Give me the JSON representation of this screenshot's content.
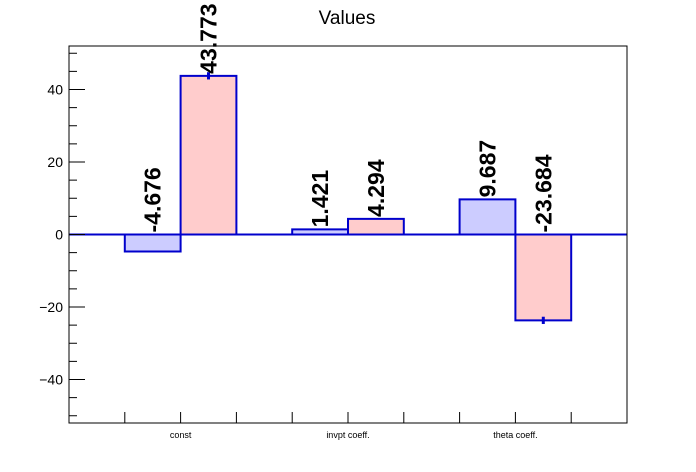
{
  "chart_data": {
    "type": "bar",
    "title": "Values",
    "xlabel": "",
    "ylabel": "",
    "categories": [
      "const",
      "invpt coeff.",
      "theta coeff."
    ],
    "series": [
      {
        "values": [
          -4.676,
          1.421,
          9.687
        ],
        "labels": [
          "-4.676",
          "1.421",
          "9.687"
        ],
        "fill": "#ccccff",
        "errors": [
          0,
          0,
          0
        ]
      },
      {
        "values": [
          43.773,
          4.294,
          -23.684
        ],
        "labels": [
          "43.773",
          "4.294",
          "-23.684"
        ],
        "fill": "#ffcccc",
        "errors": [
          1.0,
          0,
          1.0
        ]
      }
    ],
    "ylim": [
      -52,
      52
    ],
    "yticks": [
      -40,
      -20,
      0,
      20,
      40
    ],
    "ytick_labels": [
      "−40",
      "−20",
      "0",
      "20",
      "40"
    ],
    "bar_edge_color": "#0000cc",
    "zero_line_color": "#0000cc",
    "grid": false,
    "legend": "none"
  }
}
